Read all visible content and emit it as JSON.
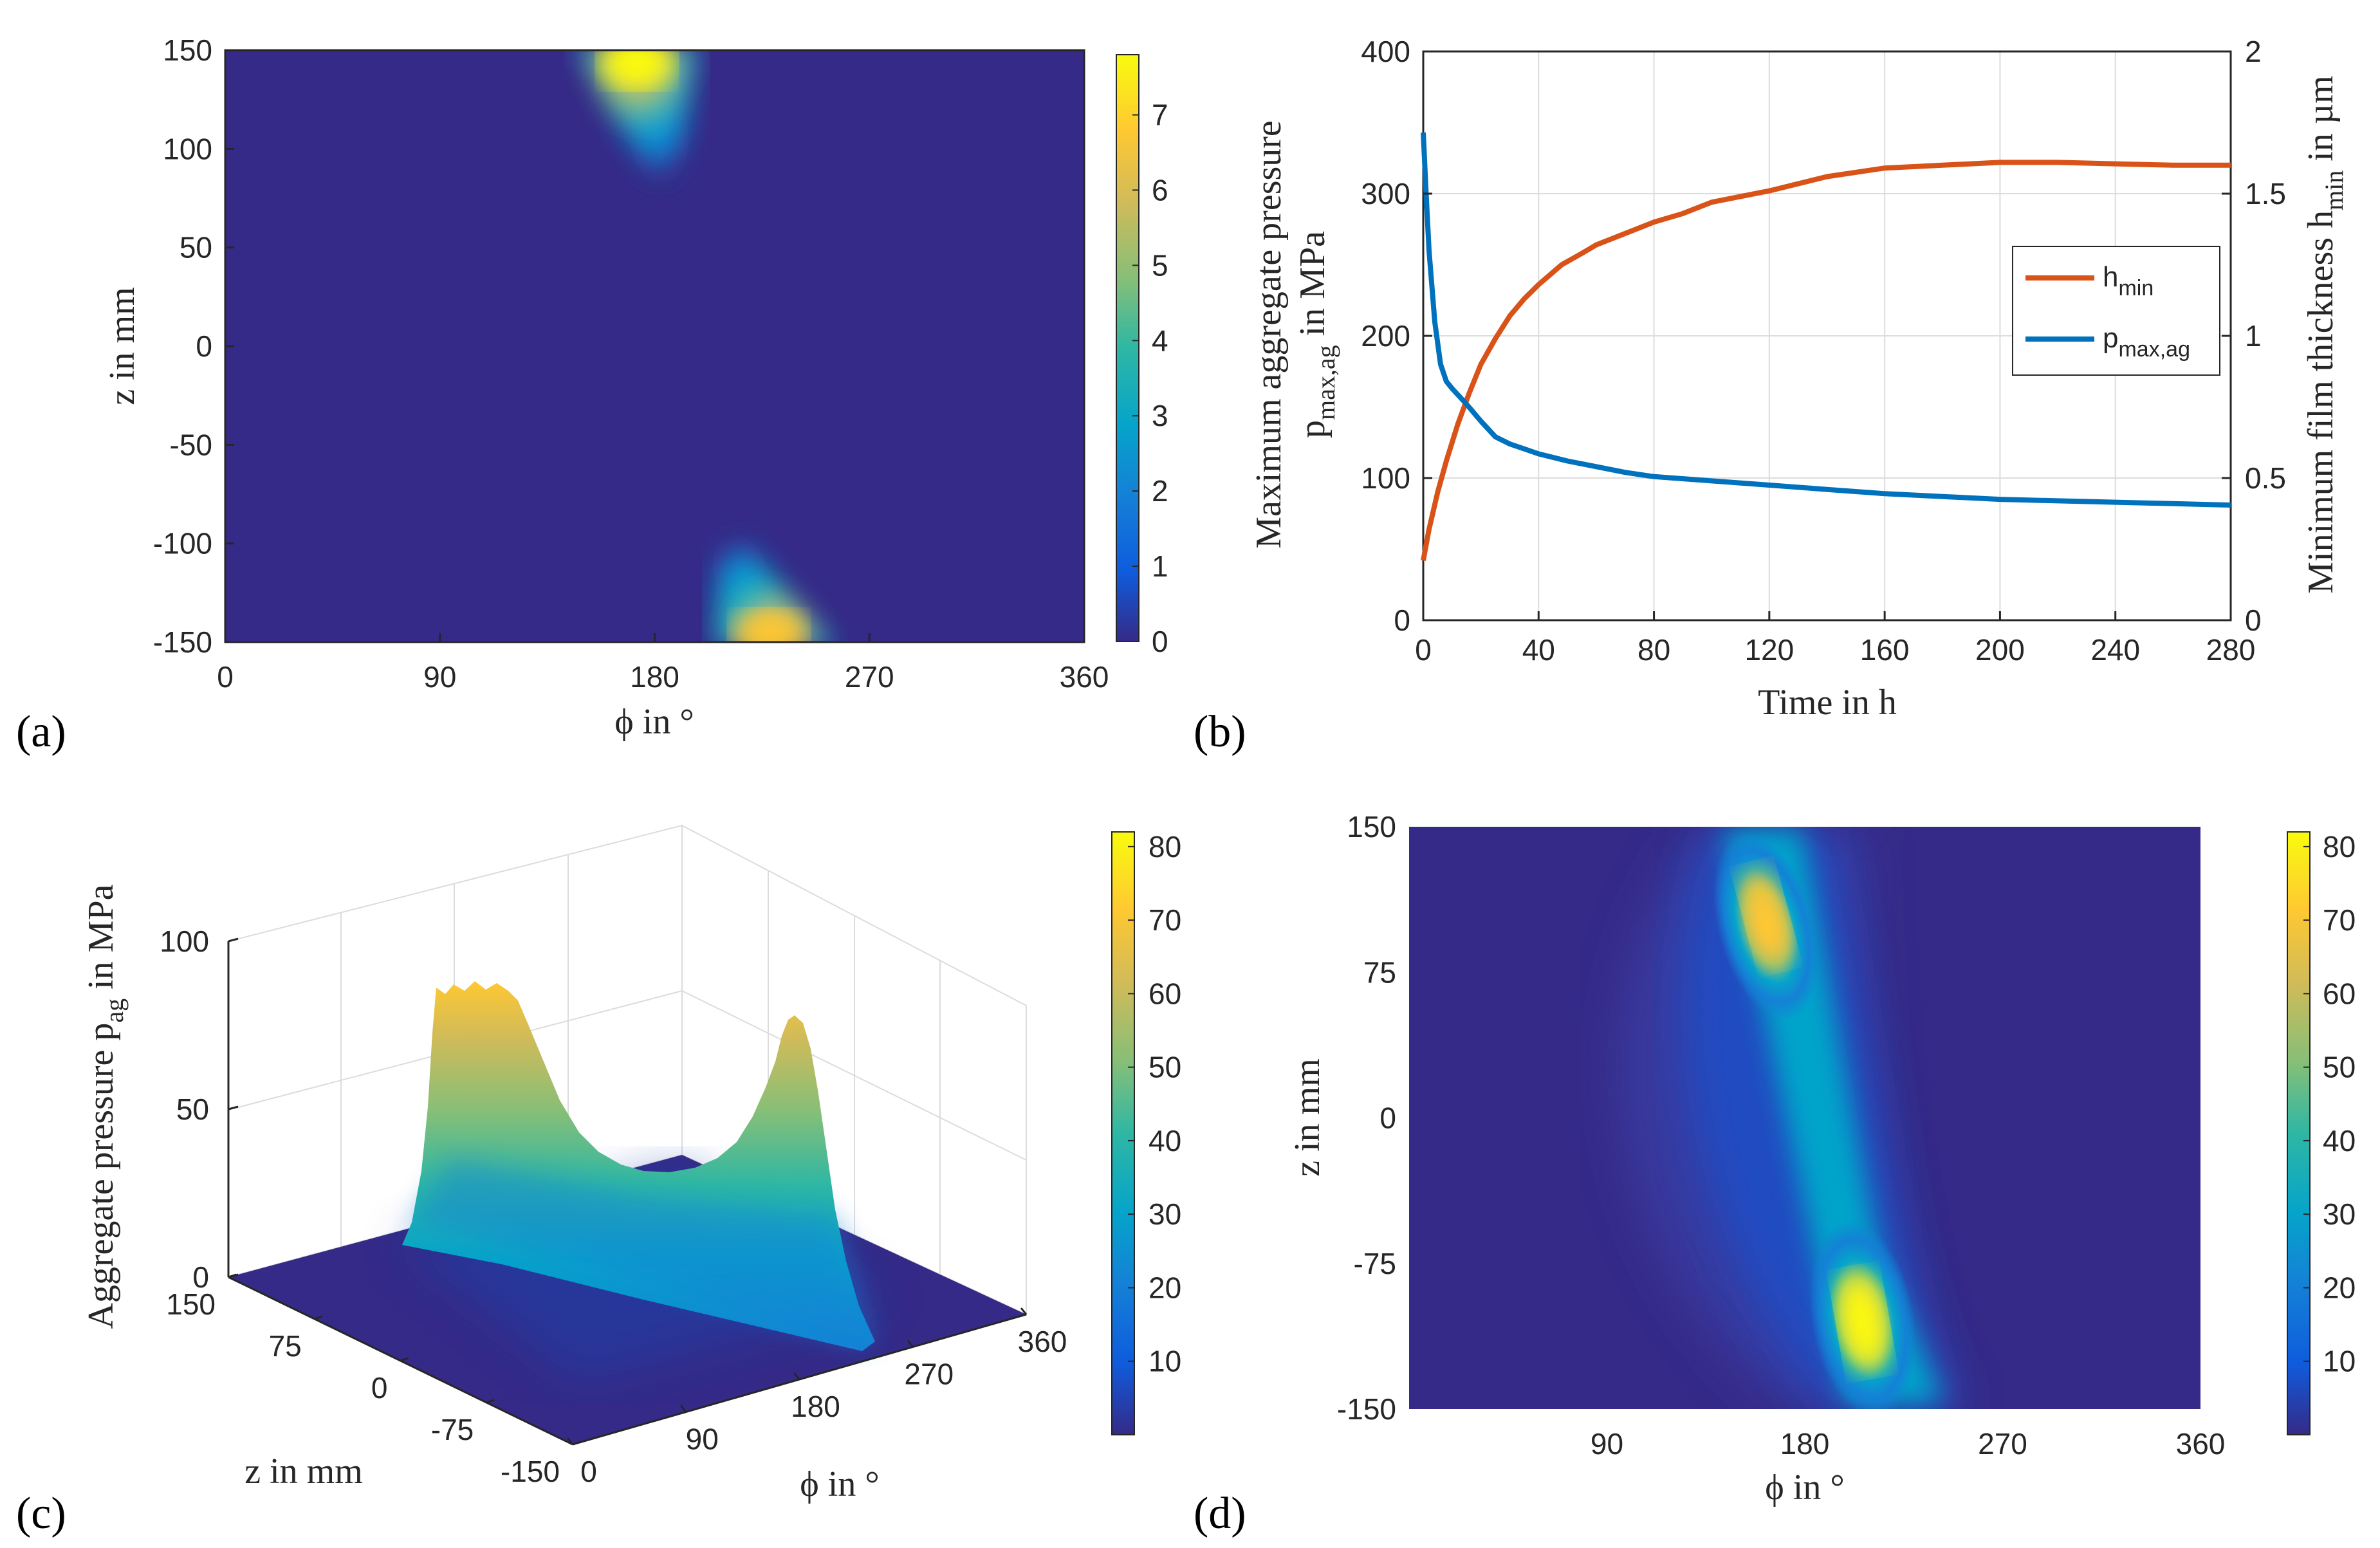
{
  "colors": {
    "hmin": "#D95319",
    "pmax": "#0072BD",
    "grid": "#dcdcdc",
    "axis": "#262626",
    "parula_low": "#352A87",
    "parula_high": "#F9FB0E"
  },
  "panels": {
    "a": {
      "label": "(a)",
      "xlabel": "ϕ in °",
      "ylabel": "z in mm",
      "xticks": [
        "0",
        "90",
        "180",
        "270",
        "360"
      ],
      "yticks": [
        "150",
        "100",
        "50",
        "0",
        "-50",
        "-100",
        "-150"
      ],
      "colorbar_ticks": [
        "7",
        "6",
        "5",
        "4",
        "3",
        "2",
        "1",
        "0"
      ],
      "hotspots": [
        {
          "phi": 172,
          "z": 150,
          "peak": 7.8
        },
        {
          "phi": 230,
          "z": -150,
          "peak": 5.5
        }
      ]
    },
    "b": {
      "label": "(b)",
      "xlabel": "Time in h",
      "ylabel_line1": "Maximum aggregate pressure",
      "ylabel_line2": "p",
      "ylabel_sub": "max,ag",
      "ylabel_line2b": " in MPa",
      "ylabel_right": "Minimum film thickness h",
      "ylabel_right_sub": "min",
      "ylabel_right_tail": " in µm",
      "xticks": [
        "0",
        "40",
        "80",
        "120",
        "160",
        "200",
        "240",
        "280"
      ],
      "yticks_left": [
        "400",
        "300",
        "200",
        "100",
        "0"
      ],
      "yticks_right": [
        "2",
        "1.5",
        "1",
        "0.5",
        "0"
      ],
      "legend": [
        {
          "main": "h",
          "sub": "min"
        },
        {
          "main": "p",
          "sub": "max,ag"
        }
      ]
    },
    "c": {
      "label": "(c)",
      "zlabel": "Aggregate pressure p",
      "zlabel_sub": "ag",
      "zlabel_tail": " in MPa",
      "xlabel": "z in mm",
      "ylabel": "ϕ in °",
      "zticks": [
        "100",
        "50",
        "0"
      ],
      "zmm_ticks": [
        "150",
        "75",
        "0",
        "-75",
        "-150"
      ],
      "phi_ticks": [
        "0",
        "90",
        "180",
        "270",
        "360"
      ],
      "colorbar_ticks": [
        "80",
        "70",
        "60",
        "50",
        "40",
        "30",
        "20",
        "10"
      ]
    },
    "d": {
      "label": "(d)",
      "xlabel": "ϕ in °",
      "ylabel": "z in mm",
      "xticks": [
        "90",
        "180",
        "270",
        "360"
      ],
      "yticks": [
        "150",
        "75",
        "0",
        "-75",
        "-150"
      ],
      "colorbar_ticks": [
        "80",
        "70",
        "60",
        "50",
        "40",
        "30",
        "20",
        "10"
      ]
    }
  },
  "chart_data": [
    {
      "type": "heatmap",
      "panel": "a",
      "title": "",
      "xlabel": "ϕ in °",
      "ylabel": "z in mm",
      "xlim": [
        0,
        360
      ],
      "ylim": [
        -150,
        150
      ],
      "clim": [
        0,
        7.8
      ]
    },
    {
      "type": "line",
      "panel": "b",
      "title": "",
      "xlabel": "Time in h",
      "xlim": [
        0,
        280
      ],
      "ylim_left": [
        0,
        400
      ],
      "ylim_right": [
        0,
        2
      ],
      "series": [
        {
          "name": "h_min",
          "axis": "right",
          "x": [
            0,
            2,
            5,
            8,
            12,
            16,
            20,
            25,
            30,
            35,
            40,
            48,
            55,
            60,
            70,
            80,
            90,
            100,
            120,
            140,
            160,
            180,
            200,
            220,
            240,
            260,
            280
          ],
          "values": [
            0.21,
            0.32,
            0.45,
            0.56,
            0.69,
            0.8,
            0.9,
            0.99,
            1.07,
            1.13,
            1.18,
            1.25,
            1.29,
            1.32,
            1.36,
            1.4,
            1.43,
            1.47,
            1.51,
            1.56,
            1.59,
            1.6,
            1.61,
            1.61,
            1.605,
            1.6,
            1.6
          ]
        },
        {
          "name": "p_max,ag",
          "axis": "left",
          "x": [
            0,
            1,
            2,
            4,
            6,
            8,
            10,
            15,
            20,
            25,
            30,
            40,
            50,
            60,
            70,
            80,
            100,
            120,
            140,
            160,
            180,
            200,
            220,
            240,
            260,
            280
          ],
          "values": [
            343,
            300,
            260,
            210,
            180,
            168,
            163,
            152,
            140,
            129,
            124,
            117,
            112,
            108,
            104,
            101,
            98,
            95,
            92,
            89,
            87,
            85,
            84,
            83,
            82,
            81
          ]
        }
      ]
    },
    {
      "type": "area",
      "panel": "c",
      "title": "",
      "xlabel": "z in mm",
      "ylabel": "ϕ in °",
      "zlabel": "Aggregate pressure p_ag in MPa",
      "zlim": [
        0,
        100
      ],
      "clim": [
        0,
        82
      ],
      "profile_z": [
        -150,
        -120,
        -90,
        -60,
        -30,
        0,
        30,
        60,
        90,
        120,
        150
      ],
      "profile_values": [
        55,
        48,
        37,
        25,
        18,
        15,
        20,
        33,
        55,
        75,
        85
      ]
    },
    {
      "type": "heatmap",
      "panel": "d",
      "title": "",
      "xlabel": "ϕ in °",
      "ylabel": "z in mm",
      "xlim": [
        0,
        360
      ],
      "ylim": [
        -150,
        150
      ],
      "clim": [
        0,
        82
      ],
      "hotspots": [
        {
          "phi": 165,
          "z": 110,
          "peak": 78
        },
        {
          "phi": 210,
          "z": -105,
          "peak": 80
        }
      ]
    }
  ]
}
